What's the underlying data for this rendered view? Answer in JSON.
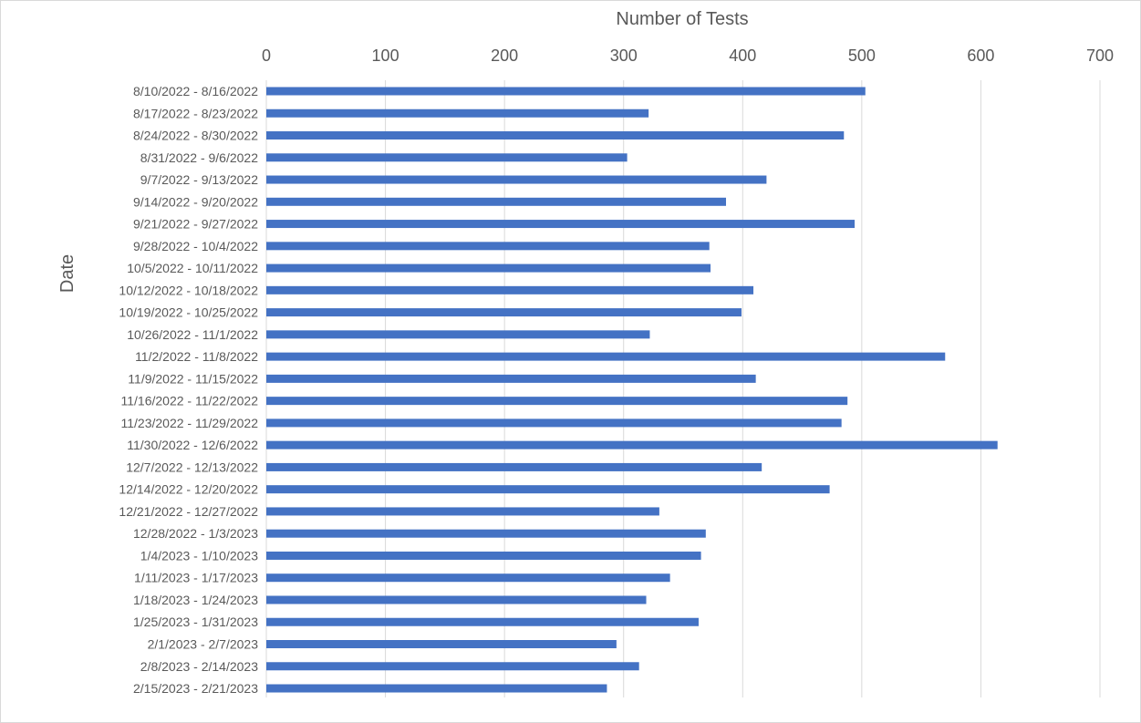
{
  "chart_data": {
    "type": "bar",
    "orientation": "horizontal",
    "xlabel": "Number of Tests",
    "ylabel": "Date",
    "xlim": [
      0,
      700
    ],
    "x_ticks": [
      0,
      100,
      200,
      300,
      400,
      500,
      600,
      700
    ],
    "x_axis_position": "top",
    "grid": "vertical",
    "categories": [
      "8/10/2022 - 8/16/2022",
      "8/17/2022 - 8/23/2022",
      "8/24/2022 - 8/30/2022",
      "8/31/2022 - 9/6/2022",
      "9/7/2022 - 9/13/2022",
      "9/14/2022 - 9/20/2022",
      "9/21/2022 - 9/27/2022",
      "9/28/2022 - 10/4/2022",
      "10/5/2022 - 10/11/2022",
      "10/12/2022 - 10/18/2022",
      "10/19/2022 - 10/25/2022",
      "10/26/2022 - 11/1/2022",
      "11/2/2022 - 11/8/2022",
      "11/9/2022 - 11/15/2022",
      "11/16/2022 - 11/22/2022",
      "11/23/2022 - 11/29/2022",
      "11/30/2022 - 12/6/2022",
      "12/7/2022 - 12/13/2022",
      "12/14/2022 - 12/20/2022",
      "12/21/2022 - 12/27/2022",
      "12/28/2022 - 1/3/2023",
      "1/4/2023 - 1/10/2023",
      "1/11/2023 - 1/17/2023",
      "1/18/2023 - 1/24/2023",
      "1/25/2023 - 1/31/2023",
      "2/1/2023 - 2/7/2023",
      "2/8/2023 - 2/14/2023",
      "2/15/2023 - 2/21/2023"
    ],
    "values": [
      503,
      321,
      485,
      303,
      420,
      386,
      494,
      372,
      373,
      409,
      399,
      322,
      570,
      411,
      488,
      483,
      614,
      416,
      473,
      330,
      369,
      365,
      339,
      319,
      363,
      294,
      313,
      286
    ],
    "colors": {
      "bar": "#4472C4",
      "grid": "#D9D9D9",
      "text": "#595959",
      "border": "#D9D9D9"
    }
  }
}
